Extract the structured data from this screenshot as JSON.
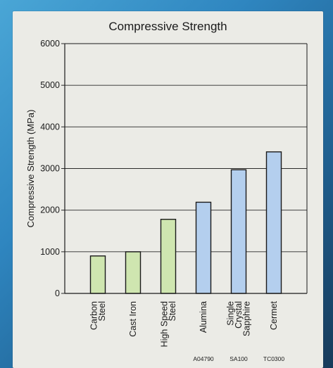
{
  "chart_data": {
    "type": "bar",
    "title": "Compressive Strength",
    "xlabel": "",
    "ylabel": "Compressive Strength (MPa)",
    "ylim": [
      0,
      6000
    ],
    "yticks": [
      0,
      1000,
      2000,
      3000,
      4000,
      5000,
      6000
    ],
    "grid": true,
    "categories": [
      "Carbon Steel",
      "Cast Iron",
      "High Speed Steel",
      "Alumina",
      "Single Crystal Sapphire",
      "Cermet"
    ],
    "category_lines": [
      [
        "Carbon",
        "Steel"
      ],
      [
        "Cast Iron"
      ],
      [
        "High Speed",
        "Steel"
      ],
      [
        "Alumina"
      ],
      [
        "Single",
        "Crystal",
        "Sapphire"
      ],
      [
        "Cermet"
      ]
    ],
    "sublabels": [
      "",
      "",
      "",
      "A04790",
      "SA100",
      "TC0300"
    ],
    "values": [
      900,
      1000,
      1780,
      2190,
      2970,
      3400
    ],
    "bar_colors": [
      "#cfe6b0",
      "#cfe6b0",
      "#cfe6b0",
      "#b4cfee",
      "#b4cfee",
      "#b4cfee"
    ]
  }
}
